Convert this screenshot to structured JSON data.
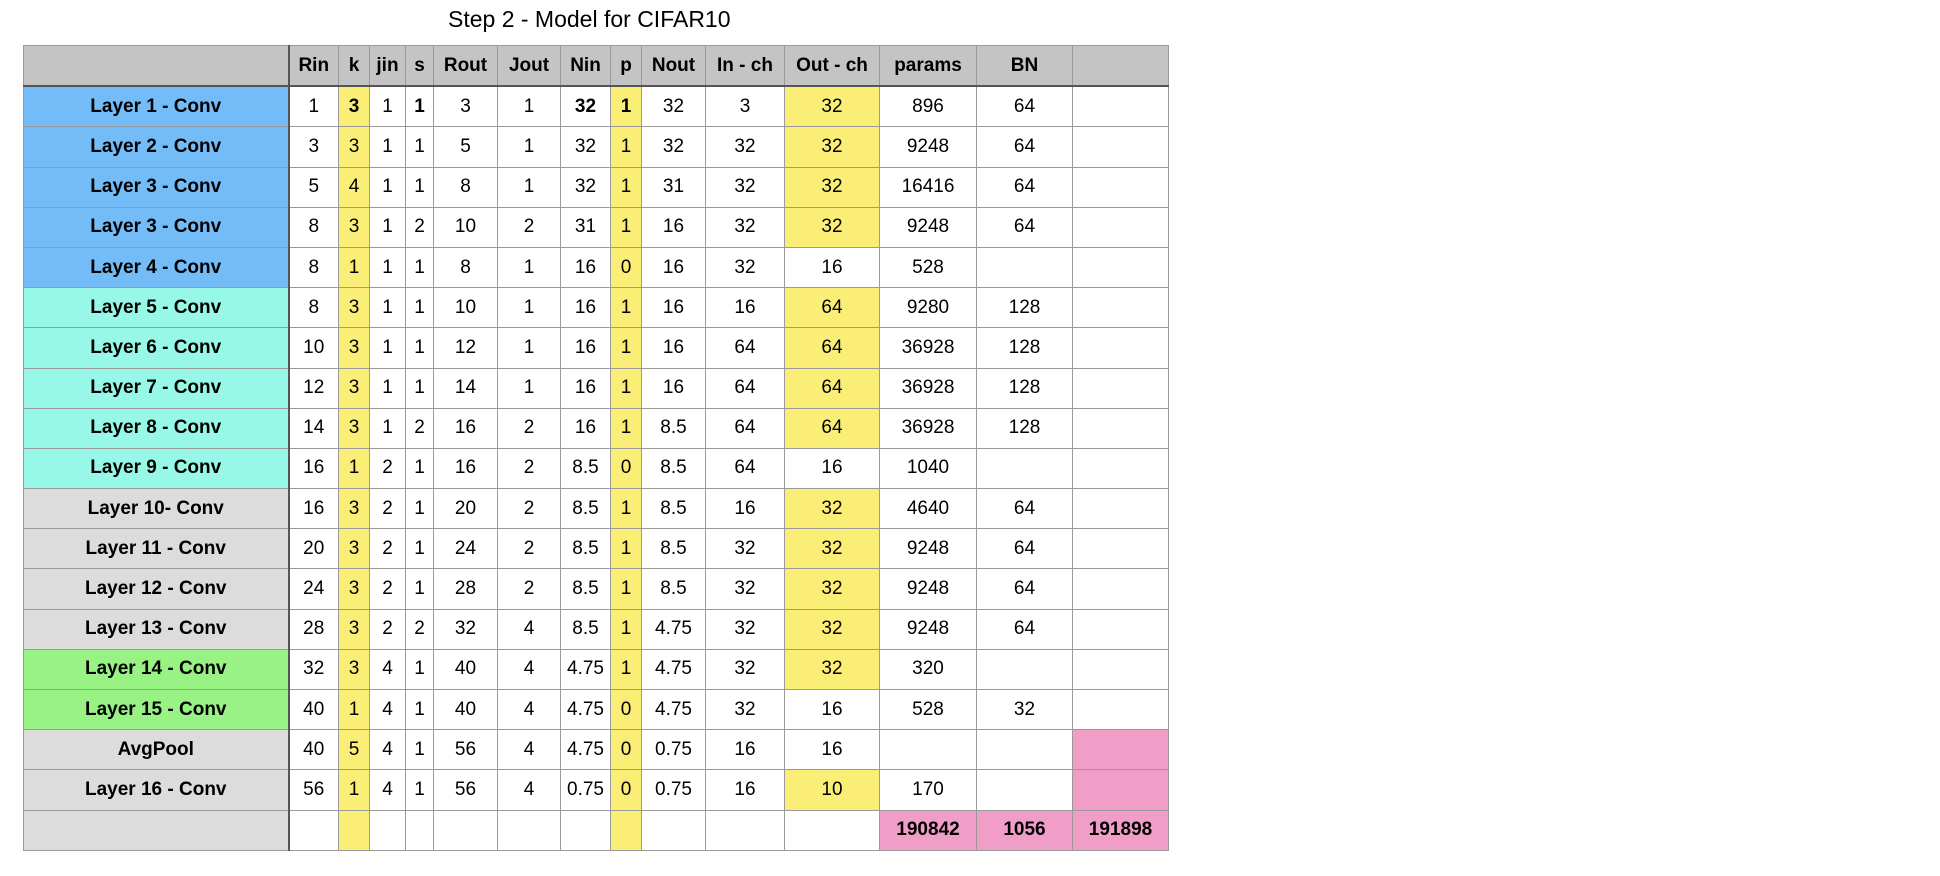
{
  "title": "Step 2 - Model for CIFAR10",
  "columns": [
    "",
    "Rin",
    "k",
    "jin",
    "s",
    "Rout",
    "Jout",
    "Nin",
    "p",
    "Nout",
    "In - ch",
    "Out - ch",
    "params",
    "BN",
    ""
  ],
  "rows": [
    {
      "label": "Layer 1  - Conv",
      "group": "blue",
      "cells": [
        "1",
        "3",
        "1",
        "1",
        "3",
        "1",
        "32",
        "1",
        "32",
        "3",
        "32",
        "896",
        "64",
        ""
      ]
    },
    {
      "label": "Layer 2 - Conv",
      "group": "blue",
      "cells": [
        "3",
        "3",
        "1",
        "1",
        "5",
        "1",
        "32",
        "1",
        "32",
        "32",
        "32",
        "9248",
        "64",
        ""
      ]
    },
    {
      "label": "Layer 3 - Conv",
      "group": "blue",
      "cells": [
        "5",
        "4",
        "1",
        "1",
        "8",
        "1",
        "32",
        "1",
        "31",
        "32",
        "32",
        "16416",
        "64",
        ""
      ]
    },
    {
      "label": "Layer 3 - Conv",
      "group": "blue",
      "cells": [
        "8",
        "3",
        "1",
        "2",
        "10",
        "2",
        "31",
        "1",
        "16",
        "32",
        "32",
        "9248",
        "64",
        ""
      ]
    },
    {
      "label": "Layer 4 - Conv",
      "group": "blue",
      "cells": [
        "8",
        "1",
        "1",
        "1",
        "8",
        "1",
        "16",
        "0",
        "16",
        "32",
        "16",
        "528",
        "",
        ""
      ]
    },
    {
      "label": "Layer 5 - Conv",
      "group": "teal",
      "cells": [
        "8",
        "3",
        "1",
        "1",
        "10",
        "1",
        "16",
        "1",
        "16",
        "16",
        "64",
        "9280",
        "128",
        ""
      ]
    },
    {
      "label": "Layer 6 - Conv",
      "group": "teal",
      "cells": [
        "10",
        "3",
        "1",
        "1",
        "12",
        "1",
        "16",
        "1",
        "16",
        "64",
        "64",
        "36928",
        "128",
        ""
      ]
    },
    {
      "label": "Layer 7 - Conv",
      "group": "teal",
      "cells": [
        "12",
        "3",
        "1",
        "1",
        "14",
        "1",
        "16",
        "1",
        "16",
        "64",
        "64",
        "36928",
        "128",
        ""
      ]
    },
    {
      "label": "Layer 8 - Conv",
      "group": "teal",
      "cells": [
        "14",
        "3",
        "1",
        "2",
        "16",
        "2",
        "16",
        "1",
        "8.5",
        "64",
        "64",
        "36928",
        "128",
        ""
      ]
    },
    {
      "label": "Layer 9 - Conv",
      "group": "teal",
      "cells": [
        "16",
        "1",
        "2",
        "1",
        "16",
        "2",
        "8.5",
        "0",
        "8.5",
        "64",
        "16",
        "1040",
        "",
        ""
      ]
    },
    {
      "label": "Layer 10- Conv",
      "group": "gray",
      "cells": [
        "16",
        "3",
        "2",
        "1",
        "20",
        "2",
        "8.5",
        "1",
        "8.5",
        "16",
        "32",
        "4640",
        "64",
        ""
      ]
    },
    {
      "label": "Layer 11 - Conv",
      "group": "gray",
      "cells": [
        "20",
        "3",
        "2",
        "1",
        "24",
        "2",
        "8.5",
        "1",
        "8.5",
        "32",
        "32",
        "9248",
        "64",
        ""
      ]
    },
    {
      "label": "Layer 12 - Conv",
      "group": "gray",
      "cells": [
        "24",
        "3",
        "2",
        "1",
        "28",
        "2",
        "8.5",
        "1",
        "8.5",
        "32",
        "32",
        "9248",
        "64",
        ""
      ]
    },
    {
      "label": "Layer 13 - Conv",
      "group": "gray",
      "cells": [
        "28",
        "3",
        "2",
        "2",
        "32",
        "4",
        "8.5",
        "1",
        "4.75",
        "32",
        "32",
        "9248",
        "64",
        ""
      ]
    },
    {
      "label": "Layer 14 - Conv",
      "group": "green",
      "cells": [
        "32",
        "3",
        "4",
        "1",
        "40",
        "4",
        "4.75",
        "1",
        "4.75",
        "32",
        "32",
        "320",
        "",
        ""
      ]
    },
    {
      "label": "Layer 15 - Conv",
      "group": "green",
      "cells": [
        "40",
        "1",
        "4",
        "1",
        "40",
        "4",
        "4.75",
        "0",
        "4.75",
        "32",
        "16",
        "528",
        "32",
        ""
      ]
    },
    {
      "label": "AvgPool",
      "group": "gray",
      "cells": [
        "40",
        "5",
        "4",
        "1",
        "56",
        "4",
        "4.75",
        "0",
        "0.75",
        "16",
        "16",
        "",
        "",
        ""
      ]
    },
    {
      "label": "Layer 16 - Conv",
      "group": "gray",
      "cells": [
        "56",
        "1",
        "4",
        "1",
        "56",
        "4",
        "0.75",
        "0",
        "0.75",
        "16",
        "10",
        "170",
        "",
        ""
      ]
    }
  ],
  "totals": {
    "params": "190842",
    "bn": "1056",
    "total": "191898"
  },
  "colors": {
    "blue": "#73bcf7",
    "teal": "#98f8e8",
    "gray": "#dcdcdc",
    "green": "#98f284",
    "highlight_yellow": "#fbee76",
    "total_pink": "#f09ec8",
    "header_gray": "#c4c4c4"
  }
}
